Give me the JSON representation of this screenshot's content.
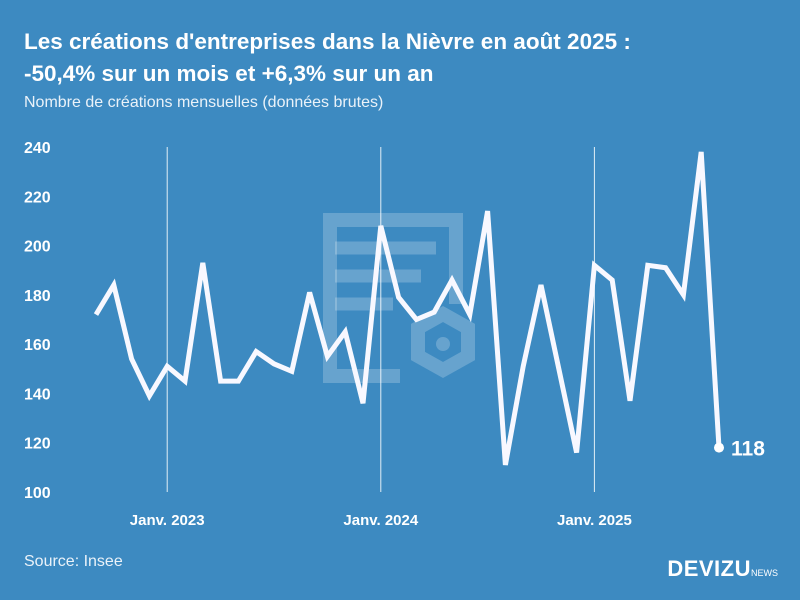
{
  "title_line1": "Les créations d'entreprises dans la Nièvre en août 2025 :",
  "title_line2": "-50,4% sur un mois et +6,3% sur un an",
  "subtitle": "Nombre de créations mensuelles (données brutes)",
  "source": "Source: Insee",
  "logo": {
    "main": "DEVIZU",
    "suffix": "NEWS"
  },
  "chart_data": {
    "type": "line",
    "title": "Les créations d'entreprises dans la Nièvre en août 2025 : -50,4% sur un mois et +6,3% sur un an",
    "ylabel": "Nombre de créations mensuelles (données brutes)",
    "ylim": [
      100,
      240
    ],
    "yticks": [
      "100",
      "120",
      "140",
      "160",
      "180",
      "200",
      "220",
      "240"
    ],
    "xtick_labels": [
      {
        "label": "Janv. 2023",
        "index": 4
      },
      {
        "label": "Janv. 2024",
        "index": 16
      },
      {
        "label": "Janv. 2025",
        "index": 28
      }
    ],
    "x": [
      "2022-09",
      "2022-10",
      "2022-11",
      "2022-12",
      "2023-01",
      "2023-02",
      "2023-03",
      "2023-04",
      "2023-05",
      "2023-06",
      "2023-07",
      "2023-08",
      "2023-09",
      "2023-10",
      "2023-11",
      "2023-12",
      "2024-01",
      "2024-02",
      "2024-03",
      "2024-04",
      "2024-05",
      "2024-06",
      "2024-07",
      "2024-08",
      "2024-09",
      "2024-10",
      "2024-11",
      "2024-12",
      "2025-01",
      "2025-02",
      "2025-03",
      "2025-04",
      "2025-05",
      "2025-06",
      "2025-07",
      "2025-08"
    ],
    "series": [
      {
        "name": "Créations",
        "values": [
          172,
          184,
          154,
          139,
          151,
          145,
          193,
          145,
          145,
          157,
          152,
          149,
          181,
          155,
          165,
          136,
          208,
          179,
          170,
          173,
          186,
          172,
          214,
          111,
          151,
          184,
          150,
          116,
          192,
          186,
          137,
          192,
          191,
          180,
          238,
          118
        ]
      }
    ],
    "last_label": "118",
    "grid": false
  }
}
